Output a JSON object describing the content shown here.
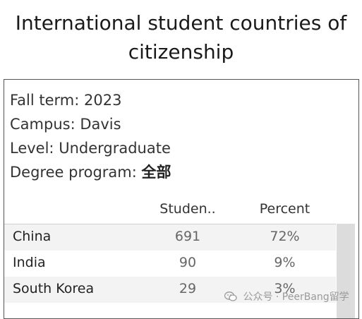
{
  "title": "International student countries of citizenship",
  "filters": {
    "fall_term_label": "Fall term:",
    "fall_term_value": "2023",
    "campus_label": "Campus:",
    "campus_value": "Davis",
    "level_label": "Level:",
    "level_value": "Undergraduate",
    "degree_program_label": "Degree program:",
    "degree_program_value": "全部"
  },
  "table": {
    "columns": [
      "Studen..",
      "Percent"
    ],
    "rows": [
      {
        "country": "China",
        "students": "691",
        "percent": "72%"
      },
      {
        "country": "India",
        "students": "90",
        "percent": "9%"
      },
      {
        "country": "South Korea",
        "students": "29",
        "percent": "3%"
      }
    ]
  },
  "watermark": {
    "text": "公众号 · PeerBang留学",
    "icon": "wechat-icon"
  },
  "colors": {
    "row_alt": "#f3f3f3",
    "scrollbar": "#dcdcdc",
    "border": "#555555"
  }
}
